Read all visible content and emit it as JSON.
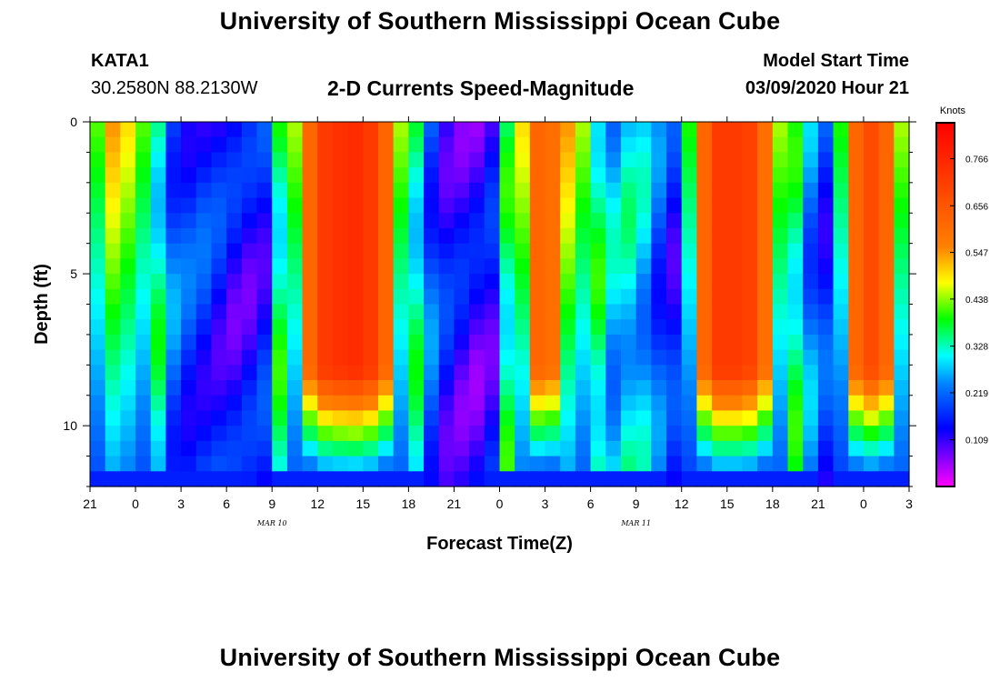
{
  "header": {
    "title": "University of Southern Mississippi Ocean Cube",
    "station_id": "KATA1",
    "station_coords": "30.2580N 88.2130W",
    "chart_title": "2-D Currents Speed-Magnitude",
    "model_label": "Model Start Time",
    "model_value": "03/09/2020 Hour 21"
  },
  "footer": {
    "title": "University of Southern Mississippi Ocean Cube"
  },
  "chart_data": {
    "type": "heatmap",
    "title": "2-D Currents Speed-Magnitude",
    "xlabel": "Forecast Time(Z)",
    "ylabel": "Depth (ft)",
    "x_ticks": [
      "21",
      "0",
      "3",
      "6",
      "9",
      "12",
      "15",
      "18",
      "21",
      "0",
      "3",
      "6",
      "9",
      "12",
      "15",
      "18",
      "21",
      "0",
      "3"
    ],
    "x_range_hours": [
      0,
      54
    ],
    "y_ticks": [
      0,
      5,
      10
    ],
    "ylim": [
      0,
      12
    ],
    "date_labels": [
      {
        "text": "MAR 10",
        "hour": 15
      },
      {
        "text": "MAR 11",
        "hour": 39
      }
    ],
    "colorbar": {
      "label": "Knots",
      "vmin": 0.0,
      "vmax": 0.85,
      "ticks": [
        0.109,
        0.219,
        0.328,
        0.438,
        0.547,
        0.656,
        0.766
      ]
    },
    "depth_rows": [
      0.25,
      0.75,
      1.25,
      1.75,
      2.25,
      2.75,
      3.25,
      3.75,
      4.25,
      4.75,
      5.25,
      5.75,
      6.25,
      6.75,
      7.25,
      7.75,
      8.25,
      8.75,
      9.25,
      9.75,
      10.25,
      10.75,
      11.25,
      11.75
    ],
    "time_columns": 54,
    "speed_profile": {
      "comment": "surface speed (knots) per forecast hour 0..53 and the depth (ft) where the core peaks",
      "surface": [
        0.42,
        0.55,
        0.5,
        0.42,
        0.28,
        0.16,
        0.13,
        0.12,
        0.1,
        0.08,
        0.08,
        0.1,
        0.3,
        0.45,
        0.62,
        0.72,
        0.74,
        0.75,
        0.72,
        0.62,
        0.45,
        0.28,
        0.15,
        0.09,
        0.07,
        0.06,
        0.08,
        0.3,
        0.5,
        0.62,
        0.6,
        0.55,
        0.45,
        0.3,
        0.22,
        0.25,
        0.22,
        0.15,
        0.1,
        0.4,
        0.62,
        0.72,
        0.72,
        0.7,
        0.6,
        0.45,
        0.3,
        0.18,
        0.12,
        0.4,
        0.62,
        0.68,
        0.62,
        0.45
      ]
    }
  }
}
